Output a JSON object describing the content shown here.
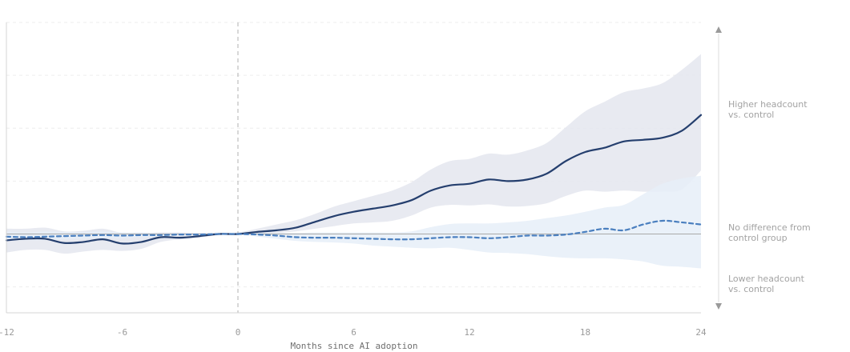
{
  "chart_data": {
    "type": "line",
    "title": "",
    "xlabel": "Months since AI adoption",
    "ylabel": "",
    "xlim": [
      -12,
      24
    ],
    "ylim": [
      -1.5,
      4
    ],
    "x_ticks": [
      "-12",
      "-6",
      "0",
      "6",
      "12",
      "18",
      "24"
    ],
    "grid": true,
    "reference_x": 0,
    "reference_y": 0,
    "series": [
      {
        "name": "",
        "style": "solid",
        "color": "#253f6e",
        "band_color": "#e4e6ee",
        "x": [
          -12,
          -11,
          -10,
          -9,
          -8,
          -7,
          -6,
          -5,
          -4,
          -3,
          -2,
          -1,
          0,
          1,
          2,
          3,
          4,
          5,
          6,
          7,
          8,
          9,
          10,
          11,
          12,
          13,
          14,
          15,
          16,
          17,
          18,
          19,
          20,
          21,
          22,
          23,
          24
        ],
        "values": [
          -0.12,
          -0.09,
          -0.09,
          -0.17,
          -0.15,
          -0.1,
          -0.18,
          -0.15,
          -0.06,
          -0.07,
          -0.04,
          0.0,
          0.0,
          0.04,
          0.07,
          0.12,
          0.23,
          0.34,
          0.42,
          0.48,
          0.54,
          0.64,
          0.82,
          0.92,
          0.95,
          1.03,
          1.0,
          1.03,
          1.14,
          1.38,
          1.55,
          1.63,
          1.75,
          1.78,
          1.82,
          1.95,
          2.25
        ],
        "upper": [
          0.1,
          0.1,
          0.12,
          0.05,
          0.06,
          0.1,
          0.02,
          0.02,
          0.03,
          0.03,
          0.02,
          0.02,
          0.03,
          0.1,
          0.18,
          0.26,
          0.38,
          0.52,
          0.62,
          0.72,
          0.82,
          0.98,
          1.22,
          1.38,
          1.42,
          1.52,
          1.5,
          1.58,
          1.72,
          2.02,
          2.32,
          2.5,
          2.68,
          2.75,
          2.85,
          3.1,
          3.4
        ],
        "lower": [
          -0.35,
          -0.3,
          -0.3,
          -0.37,
          -0.33,
          -0.3,
          -0.32,
          -0.28,
          -0.15,
          -0.1,
          -0.07,
          -0.02,
          -0.02,
          0.0,
          0.02,
          0.05,
          0.1,
          0.15,
          0.2,
          0.22,
          0.25,
          0.35,
          0.5,
          0.55,
          0.54,
          0.56,
          0.52,
          0.53,
          0.58,
          0.72,
          0.82,
          0.8,
          0.82,
          0.8,
          0.8,
          0.84,
          1.2
        ]
      },
      {
        "name": "",
        "style": "dashed",
        "color": "#4a7fbf",
        "band_color": "#e6eef8",
        "x": [
          -12,
          -11,
          -10,
          -9,
          -8,
          -7,
          -6,
          -5,
          -4,
          -3,
          -2,
          -1,
          0,
          1,
          2,
          3,
          4,
          5,
          6,
          7,
          8,
          9,
          10,
          11,
          12,
          13,
          14,
          15,
          16,
          17,
          18,
          19,
          20,
          21,
          22,
          23,
          24
        ],
        "values": [
          -0.05,
          -0.06,
          -0.05,
          -0.04,
          -0.03,
          -0.02,
          -0.03,
          -0.02,
          -0.02,
          -0.01,
          -0.01,
          0.0,
          0.0,
          -0.01,
          -0.03,
          -0.06,
          -0.07,
          -0.07,
          -0.08,
          -0.09,
          -0.1,
          -0.1,
          -0.08,
          -0.06,
          -0.06,
          -0.08,
          -0.06,
          -0.03,
          -0.03,
          -0.01,
          0.04,
          0.1,
          0.07,
          0.18,
          0.25,
          0.22,
          0.18
        ],
        "upper": [
          0.05,
          0.03,
          0.05,
          0.04,
          0.04,
          0.05,
          0.03,
          0.03,
          0.01,
          0.01,
          0.0,
          0.0,
          0.0,
          0.02,
          0.02,
          0.02,
          0.03,
          0.03,
          0.03,
          0.03,
          0.03,
          0.05,
          0.13,
          0.19,
          0.2,
          0.2,
          0.22,
          0.25,
          0.3,
          0.35,
          0.42,
          0.5,
          0.55,
          0.75,
          0.95,
          1.05,
          1.1
        ],
        "lower": [
          -0.13,
          -0.12,
          -0.12,
          -0.1,
          -0.09,
          -0.08,
          -0.08,
          -0.06,
          -0.05,
          -0.03,
          -0.02,
          -0.01,
          -0.01,
          -0.05,
          -0.09,
          -0.13,
          -0.15,
          -0.16,
          -0.18,
          -0.22,
          -0.24,
          -0.26,
          -0.27,
          -0.26,
          -0.3,
          -0.35,
          -0.36,
          -0.38,
          -0.42,
          -0.45,
          -0.46,
          -0.46,
          -0.48,
          -0.52,
          -0.6,
          -0.62,
          -0.65
        ]
      }
    ],
    "annotations": {
      "higher": [
        "Higher headcount",
        "vs. control"
      ],
      "none": [
        "No difference from",
        "control group"
      ],
      "lower": [
        "Lower headcount",
        "vs. control"
      ]
    }
  }
}
